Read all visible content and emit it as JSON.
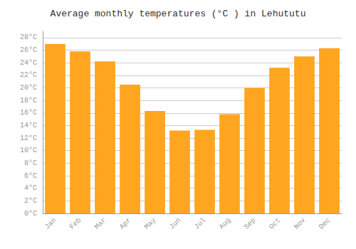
{
  "chart_data": {
    "type": "bar",
    "title": "Average monthly temperatures (°C ) in Lehututu",
    "categories": [
      "Jan",
      "Feb",
      "Mar",
      "Apr",
      "May",
      "Jun",
      "Jul",
      "Aug",
      "Sep",
      "Oct",
      "Nov",
      "Dec"
    ],
    "values": [
      27.0,
      25.8,
      24.2,
      20.5,
      16.3,
      13.2,
      13.3,
      15.8,
      20.0,
      23.2,
      25.0,
      26.3
    ],
    "color": "#FFA520",
    "ylim": [
      0,
      29
    ],
    "yticks": [
      {
        "value": 0,
        "label": "0°C"
      },
      {
        "value": 2,
        "label": "2°C"
      },
      {
        "value": 4,
        "label": "4°C"
      },
      {
        "value": 6,
        "label": "6°C"
      },
      {
        "value": 8,
        "label": "8°C"
      },
      {
        "value": 10,
        "label": "10°C"
      },
      {
        "value": 12,
        "label": "12°C"
      },
      {
        "value": 14,
        "label": "14°C"
      },
      {
        "value": 16,
        "label": "16°C"
      },
      {
        "value": 18,
        "label": "18°C"
      },
      {
        "value": 20,
        "label": "20°C"
      },
      {
        "value": 22,
        "label": "22°C"
      },
      {
        "value": 24,
        "label": "24°C"
      },
      {
        "value": 26,
        "label": "26°C"
      },
      {
        "value": 28,
        "label": "28°C"
      }
    ],
    "grid": true
  }
}
